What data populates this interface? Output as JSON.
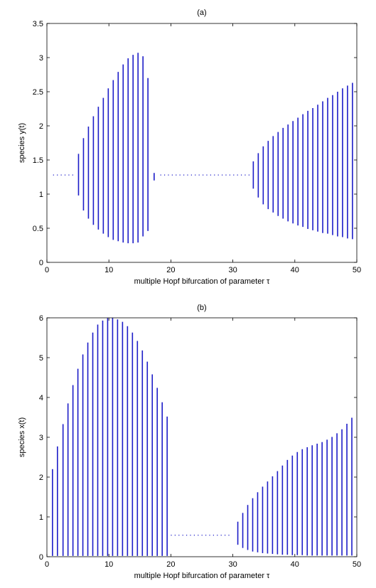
{
  "chart_data": [
    {
      "type": "bifurcation",
      "title": "(a)",
      "xlabel": "multiple Hopf bifurcation of parameter τ",
      "ylabel": "species y(t)",
      "xlim": [
        0,
        50
      ],
      "ylim": [
        0,
        3.5
      ],
      "xticks": [
        "0",
        "10",
        "20",
        "30",
        "40",
        "50"
      ],
      "yticks": [
        "0",
        "0.5",
        "1",
        "1.5",
        "2",
        "2.5",
        "3",
        "3.5"
      ],
      "color": "#1c1cc8",
      "steady_states": [
        {
          "x_start": 1,
          "x_end": 4.3,
          "y": 1.28
        },
        {
          "x_start": 18.3,
          "x_end": 32.7,
          "y": 1.28
        }
      ],
      "oscillation_ranges": {
        "x": [
          5.1,
          5.9,
          6.7,
          7.5,
          8.3,
          9.1,
          9.9,
          10.7,
          11.5,
          12.3,
          13.1,
          13.9,
          14.7,
          15.5,
          16.3,
          17.3,
          33.3,
          34.1,
          34.9,
          35.7,
          36.5,
          37.3,
          38.1,
          38.9,
          39.7,
          40.5,
          41.3,
          42.1,
          42.9,
          43.7,
          44.5,
          45.3,
          46.1,
          46.9,
          47.7,
          48.5,
          49.3
        ],
        "min": [
          0.98,
          0.76,
          0.64,
          0.55,
          0.48,
          0.42,
          0.37,
          0.33,
          0.31,
          0.29,
          0.28,
          0.28,
          0.29,
          0.38,
          0.46,
          1.2,
          1.08,
          0.95,
          0.85,
          0.78,
          0.73,
          0.68,
          0.64,
          0.6,
          0.57,
          0.54,
          0.52,
          0.49,
          0.47,
          0.45,
          0.43,
          0.42,
          0.4,
          0.38,
          0.37,
          0.35,
          0.34
        ],
        "max": [
          1.59,
          1.82,
          1.99,
          2.14,
          2.28,
          2.41,
          2.55,
          2.67,
          2.79,
          2.9,
          2.99,
          3.04,
          3.07,
          3.02,
          2.7,
          1.31,
          1.48,
          1.6,
          1.7,
          1.78,
          1.85,
          1.91,
          1.97,
          2.02,
          2.07,
          2.12,
          2.17,
          2.22,
          2.26,
          2.31,
          2.36,
          2.41,
          2.45,
          2.5,
          2.55,
          2.59,
          2.63
        ]
      }
    },
    {
      "type": "bifurcation",
      "title": "(b)",
      "xlabel": "multiple Hopf bifurcation of parameter τ",
      "ylabel": "species x(t)",
      "xlim": [
        0,
        50
      ],
      "ylim": [
        0,
        6
      ],
      "xticks": [
        "0",
        "10",
        "20",
        "30",
        "40",
        "50"
      ],
      "yticks": [
        "0",
        "1",
        "2",
        "3",
        "4",
        "5",
        "6"
      ],
      "color": "#1c1cc8",
      "steady_states": [
        {
          "x_start": 20,
          "x_end": 29.8,
          "y": 0.54
        }
      ],
      "oscillation_ranges": {
        "x": [
          0.9,
          1.7,
          2.6,
          3.4,
          4.2,
          5.0,
          5.8,
          6.6,
          7.4,
          8.2,
          9.0,
          9.8,
          10.6,
          11.4,
          12.2,
          13.0,
          13.8,
          14.6,
          15.4,
          16.2,
          17.0,
          17.8,
          18.6,
          19.4,
          30.8,
          31.6,
          32.4,
          33.2,
          34.0,
          34.8,
          35.6,
          36.4,
          37.2,
          38.0,
          38.8,
          39.6,
          40.4,
          41.2,
          42.0,
          42.8,
          43.6,
          44.4,
          45.2,
          46.0,
          46.8,
          47.6,
          48.4,
          49.2
        ],
        "min": [
          0.02,
          0.02,
          0.02,
          0.02,
          0.02,
          0.02,
          0.02,
          0.02,
          0.02,
          0.02,
          0.02,
          0.02,
          0.02,
          0.02,
          0.02,
          0.02,
          0.02,
          0.02,
          0.02,
          0.02,
          0.02,
          0.02,
          0.02,
          0.02,
          0.3,
          0.22,
          0.17,
          0.13,
          0.11,
          0.09,
          0.08,
          0.07,
          0.06,
          0.05,
          0.05,
          0.04,
          0.04,
          0.04,
          0.03,
          0.03,
          0.03,
          0.03,
          0.03,
          0.03,
          0.03,
          0.03,
          0.03,
          0.03
        ],
        "max": [
          2.2,
          2.77,
          3.33,
          3.85,
          4.31,
          4.72,
          5.08,
          5.38,
          5.63,
          5.83,
          5.93,
          5.99,
          6.0,
          5.96,
          5.9,
          5.79,
          5.63,
          5.42,
          5.18,
          4.9,
          4.58,
          4.24,
          3.88,
          3.52,
          0.88,
          1.1,
          1.3,
          1.47,
          1.62,
          1.76,
          1.89,
          2.02,
          2.15,
          2.29,
          2.43,
          2.54,
          2.63,
          2.7,
          2.75,
          2.8,
          2.84,
          2.88,
          2.94,
          3.01,
          3.1,
          3.2,
          3.34,
          3.49
        ]
      }
    }
  ]
}
